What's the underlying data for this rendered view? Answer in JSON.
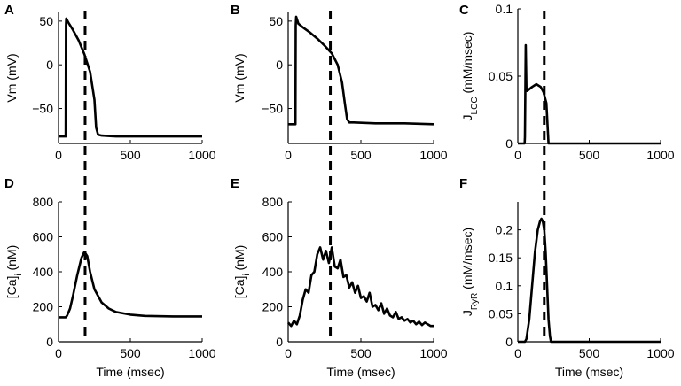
{
  "chart_data": [
    {
      "panel": "A",
      "type": "line",
      "ylabel": "Vm (mV)",
      "xlabel": "",
      "xlim": [
        0,
        1000
      ],
      "ylim": [
        -90,
        60
      ],
      "xticks": [
        0,
        500,
        1000
      ],
      "xtick_labels": [
        "0",
        "500",
        "1000"
      ],
      "yticks": [
        -50,
        0,
        50
      ],
      "ytick_labels": [
        "−50",
        "0",
        "50"
      ],
      "dashed_x": 185,
      "series": [
        {
          "name": "Vm",
          "x": [
            0,
            50,
            52,
            54,
            70,
            100,
            140,
            180,
            220,
            250,
            262,
            275,
            300,
            400,
            600,
            800,
            1000
          ],
          "y": [
            -82,
            -82,
            45,
            53,
            48,
            40,
            28,
            12,
            -8,
            -40,
            -72,
            -80,
            -81,
            -82,
            -82,
            -82,
            -82
          ]
        }
      ]
    },
    {
      "panel": "B",
      "type": "line",
      "ylabel": "Vm (mV)",
      "xlabel": "",
      "xlim": [
        0,
        1000
      ],
      "ylim": [
        -90,
        60
      ],
      "xticks": [
        0,
        500,
        1000
      ],
      "xtick_labels": [
        "0",
        "500",
        "1000"
      ],
      "yticks": [
        -50,
        0,
        50
      ],
      "ytick_labels": [
        "−50",
        "0",
        "50"
      ],
      "dashed_x": 290,
      "series": [
        {
          "name": "Vm",
          "x": [
            0,
            50,
            52,
            55,
            70,
            100,
            150,
            200,
            250,
            300,
            340,
            370,
            390,
            405,
            420,
            450,
            600,
            800,
            1000
          ],
          "y": [
            -68,
            -68,
            45,
            55,
            47,
            43,
            37,
            30,
            22,
            13,
            0,
            -20,
            -45,
            -62,
            -66,
            -66,
            -67,
            -67,
            -68
          ]
        }
      ]
    },
    {
      "panel": "C",
      "type": "line",
      "ylabel": "J",
      "ylabel_sub": "LCC",
      "ylabel_rest": " (mM/msec)",
      "xlabel": "",
      "xlim": [
        0,
        1000
      ],
      "ylim": [
        0,
        0.1
      ],
      "xticks": [
        0,
        500,
        1000
      ],
      "xtick_labels": [
        "0",
        "500",
        "1000"
      ],
      "yticks": [
        0,
        0.05,
        0.1
      ],
      "ytick_labels": [
        "0",
        "0.05",
        "0.1"
      ],
      "dashed_x": 185,
      "series": [
        {
          "name": "J_LCC",
          "x": [
            0,
            48,
            50,
            55,
            60,
            65,
            100,
            130,
            160,
            180,
            200,
            210,
            215,
            1000
          ],
          "y": [
            0,
            0,
            0.005,
            0.073,
            0.04,
            0.039,
            0.042,
            0.044,
            0.042,
            0.038,
            0.03,
            0.01,
            0,
            0
          ]
        }
      ]
    },
    {
      "panel": "D",
      "type": "line",
      "ylabel": "[Ca]",
      "ylabel_sub": "i",
      "ylabel_rest": " (nM)",
      "xlabel": "Time (msec)",
      "xlim": [
        0,
        1000
      ],
      "ylim": [
        0,
        800
      ],
      "xticks": [
        0,
        500,
        1000
      ],
      "xtick_labels": [
        "0",
        "500",
        "1000"
      ],
      "yticks": [
        0,
        200,
        400,
        600,
        800
      ],
      "ytick_labels": [
        "0",
        "200",
        "400",
        "600",
        "800"
      ],
      "dashed_x": 185,
      "series": [
        {
          "name": "[Ca]i",
          "x": [
            0,
            50,
            60,
            80,
            100,
            130,
            160,
            180,
            200,
            220,
            250,
            300,
            350,
            400,
            500,
            600,
            800,
            1000
          ],
          "y": [
            140,
            140,
            150,
            190,
            260,
            380,
            480,
            515,
            490,
            400,
            300,
            225,
            190,
            170,
            155,
            148,
            145,
            145
          ]
        }
      ]
    },
    {
      "panel": "E",
      "type": "line",
      "ylabel": "[Ca]",
      "ylabel_sub": "i",
      "ylabel_rest": " (nM)",
      "xlabel": "Time (msec)",
      "xlim": [
        0,
        1000
      ],
      "ylim": [
        0,
        800
      ],
      "xticks": [
        0,
        500,
        1000
      ],
      "xtick_labels": [
        "0",
        "500",
        "1000"
      ],
      "yticks": [
        0,
        200,
        400,
        600,
        800
      ],
      "ytick_labels": [
        "0",
        "200",
        "400",
        "600",
        "800"
      ],
      "dashed_x": 290,
      "series": [
        {
          "name": "[Ca]i",
          "x": [
            0,
            20,
            40,
            60,
            80,
            100,
            120,
            140,
            160,
            180,
            200,
            220,
            240,
            260,
            280,
            300,
            320,
            340,
            360,
            380,
            400,
            420,
            440,
            460,
            480,
            500,
            520,
            540,
            560,
            580,
            600,
            620,
            640,
            660,
            680,
            700,
            720,
            740,
            760,
            780,
            800,
            820,
            840,
            860,
            880,
            900,
            920,
            940,
            960,
            980,
            1000
          ],
          "y": [
            110,
            90,
            120,
            100,
            150,
            240,
            300,
            280,
            380,
            400,
            500,
            540,
            470,
            520,
            450,
            540,
            430,
            420,
            470,
            370,
            380,
            310,
            340,
            280,
            320,
            250,
            260,
            230,
            280,
            200,
            210,
            180,
            220,
            160,
            190,
            150,
            140,
            170,
            130,
            140,
            120,
            130,
            110,
            120,
            100,
            115,
            95,
            110,
            100,
            90,
            90
          ]
        }
      ]
    },
    {
      "panel": "F",
      "type": "line",
      "ylabel": "J",
      "ylabel_sub": "RyR",
      "ylabel_rest": " (mM/msec)",
      "xlabel": "Time (msec)",
      "xlim": [
        0,
        1000
      ],
      "ylim": [
        0,
        0.25
      ],
      "xticks": [
        0,
        500,
        1000
      ],
      "xtick_labels": [
        "0",
        "500",
        "1000"
      ],
      "yticks": [
        0,
        0.05,
        0.1,
        0.15,
        0.2
      ],
      "ytick_labels": [
        "0",
        "0.05",
        "0.1",
        "0.15",
        "0.2"
      ],
      "dashed_x": 185,
      "series": [
        {
          "name": "J_RyR",
          "x": [
            0,
            50,
            60,
            80,
            100,
            120,
            140,
            155,
            165,
            175,
            185,
            195,
            205,
            215,
            225,
            232,
            1000
          ],
          "y": [
            0,
            0,
            0.005,
            0.04,
            0.1,
            0.16,
            0.2,
            0.215,
            0.22,
            0.215,
            0.2,
            0.16,
            0.1,
            0.04,
            0.01,
            0,
            0
          ]
        }
      ]
    }
  ]
}
